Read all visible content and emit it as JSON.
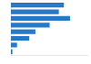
{
  "chart_data": {
    "type": "bar",
    "orientation": "horizontal",
    "categories": [
      null,
      null,
      null,
      null,
      null,
      null,
      null,
      null
    ],
    "values": [
      52,
      47,
      58,
      38,
      24,
      18,
      6,
      1.5
    ],
    "color": "#2878c8",
    "xlim": [
      0,
      75
    ],
    "grid": false,
    "tick_labels": false
  }
}
